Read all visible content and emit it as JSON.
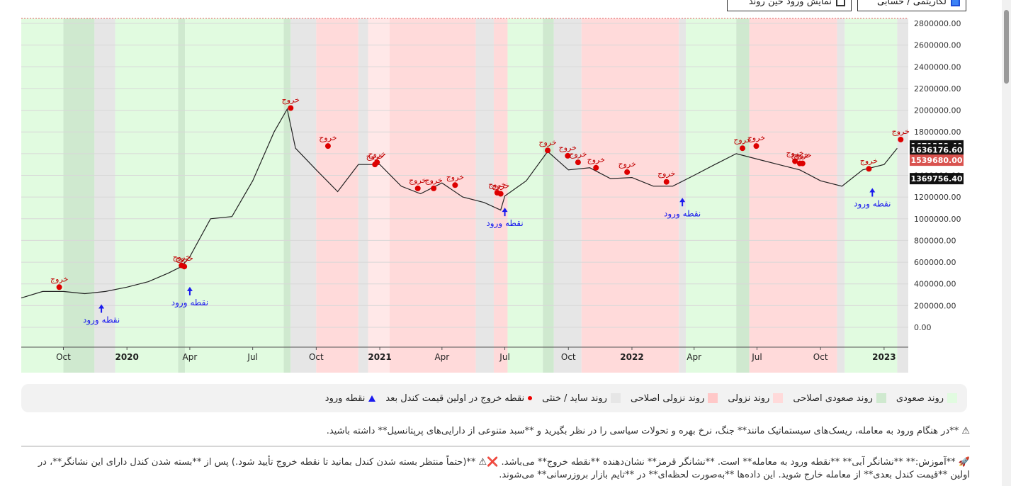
{
  "toolbar": {
    "show_entry_label": "نمایش ورود حین روند",
    "chart_mode_label": "لگاریتمی / حسابی"
  },
  "chart_data": {
    "type": "line",
    "title": "",
    "xlabel": "",
    "ylabel": "",
    "ylim": [
      0,
      2800000
    ],
    "x_ticks": [
      "Oct",
      "2020",
      "Apr",
      "Jul",
      "Oct",
      "2021",
      "Apr",
      "Jul",
      "Oct",
      "2022",
      "Apr",
      "Jul",
      "Oct",
      "2023"
    ],
    "y_ticks": [
      "0.00",
      "200000.00",
      "400000.00",
      "600000.00",
      "800000.00",
      "1000000.00",
      "1200000.00",
      "1400000.00",
      "1600000.00",
      "1800000.00",
      "2000000.00",
      "2200000.00",
      "2400000.00",
      "2600000.00",
      "2800000.00"
    ],
    "price_labels": [
      {
        "value": 1671258.4,
        "text": "1671258.40",
        "color": "#111111"
      },
      {
        "value": 1636176.6,
        "text": "1636176.60",
        "color": "#111111"
      },
      {
        "value": 1539680.0,
        "text": "1539680.00",
        "color": "#d9534f"
      },
      {
        "value": 1369756.4,
        "text": "1369756.40",
        "color": "#111111"
      }
    ],
    "series": [
      {
        "x": [
          "2019-08-01",
          "2019-09-01",
          "2019-10-01",
          "2019-11-01",
          "2019-12-01",
          "2020-01-01",
          "2020-02-01",
          "2020-03-01",
          "2020-03-20",
          "2020-04-01",
          "2020-05-01",
          "2020-06-01",
          "2020-07-01",
          "2020-08-01",
          "2020-08-20",
          "2020-09-01",
          "2020-10-01",
          "2020-11-01",
          "2020-12-01",
          "2021-01-01",
          "2021-02-01",
          "2021-03-01",
          "2021-04-01",
          "2021-05-01",
          "2021-06-01",
          "2021-06-25",
          "2021-07-01",
          "2021-08-01",
          "2021-09-01",
          "2021-10-01",
          "2021-11-01",
          "2021-12-01",
          "2022-01-01",
          "2022-02-01",
          "2022-03-01",
          "2022-04-01",
          "2022-05-01",
          "2022-06-01",
          "2022-07-01",
          "2022-08-01",
          "2022-09-01",
          "2022-10-01",
          "2022-11-01",
          "2022-12-01",
          "2023-01-01",
          "2023-01-20"
        ],
        "values": [
          270000,
          330000,
          330000,
          310000,
          330000,
          370000,
          420000,
          500000,
          560000,
          650000,
          1000000,
          1020000,
          1350000,
          1800000,
          2010000,
          1650000,
          1450000,
          1250000,
          1500000,
          1500000,
          1300000,
          1230000,
          1330000,
          1200000,
          1150000,
          1080000,
          1210000,
          1350000,
          1620000,
          1450000,
          1470000,
          1370000,
          1380000,
          1300000,
          1300000,
          1400000,
          1500000,
          1600000,
          1550000,
          1500000,
          1450000,
          1350000,
          1300000,
          1450000,
          1500000,
          1650000
        ]
      }
    ],
    "exit_points": [
      {
        "x": "2019-09-25",
        "y": 370000
      },
      {
        "x": "2020-03-20",
        "y": 570000
      },
      {
        "x": "2020-03-24",
        "y": 560000
      },
      {
        "x": "2020-08-25",
        "y": 2020000
      },
      {
        "x": "2020-10-18",
        "y": 1670000
      },
      {
        "x": "2020-12-25",
        "y": 1500000
      },
      {
        "x": "2020-12-28",
        "y": 1520000
      },
      {
        "x": "2021-02-25",
        "y": 1280000
      },
      {
        "x": "2021-03-20",
        "y": 1280000
      },
      {
        "x": "2021-04-20",
        "y": 1310000
      },
      {
        "x": "2021-06-20",
        "y": 1240000
      },
      {
        "x": "2021-06-25",
        "y": 1230000
      },
      {
        "x": "2021-09-01",
        "y": 1630000
      },
      {
        "x": "2021-09-30",
        "y": 1580000
      },
      {
        "x": "2021-10-15",
        "y": 1520000
      },
      {
        "x": "2021-11-10",
        "y": 1470000
      },
      {
        "x": "2021-12-25",
        "y": 1430000
      },
      {
        "x": "2022-02-20",
        "y": 1340000
      },
      {
        "x": "2022-06-10",
        "y": 1650000
      },
      {
        "x": "2022-06-30",
        "y": 1670000
      },
      {
        "x": "2022-08-25",
        "y": 1530000
      },
      {
        "x": "2022-09-01",
        "y": 1510000
      },
      {
        "x": "2022-09-05",
        "y": 1510000
      },
      {
        "x": "2022-12-10",
        "y": 1460000
      },
      {
        "x": "2023-01-25",
        "y": 1730000
      }
    ],
    "entry_points": [
      {
        "x": "2019-11-25",
        "y": 330000
      },
      {
        "x": "2020-04-01",
        "y": 490000
      },
      {
        "x": "2021-07-01",
        "y": 1220000
      },
      {
        "x": "2022-03-15",
        "y": 1310000
      },
      {
        "x": "2022-12-15",
        "y": 1400000
      }
    ],
    "exit_label": "خروج",
    "entry_label": "نقطه ورود",
    "regimes": [
      {
        "from": "2019-08-01",
        "to": "2019-10-01",
        "state": "up"
      },
      {
        "from": "2019-10-01",
        "to": "2019-11-15",
        "state": "up-corr"
      },
      {
        "from": "2019-11-15",
        "to": "2019-12-15",
        "state": "side"
      },
      {
        "from": "2019-12-15",
        "to": "2020-03-15",
        "state": "up"
      },
      {
        "from": "2020-03-15",
        "to": "2020-03-25",
        "state": "up-corr"
      },
      {
        "from": "2020-03-25",
        "to": "2020-08-15",
        "state": "up"
      },
      {
        "from": "2020-08-15",
        "to": "2020-08-25",
        "state": "up-corr"
      },
      {
        "from": "2020-08-25",
        "to": "2020-10-01",
        "state": "side"
      },
      {
        "from": "2020-10-01",
        "to": "2020-12-01",
        "state": "down"
      },
      {
        "from": "2020-12-01",
        "to": "2020-12-15",
        "state": "side"
      },
      {
        "from": "2020-12-15",
        "to": "2021-01-15",
        "state": "down-corr"
      },
      {
        "from": "2021-01-15",
        "to": "2021-05-20",
        "state": "down"
      },
      {
        "from": "2021-05-20",
        "to": "2021-06-15",
        "state": "side"
      },
      {
        "from": "2021-06-15",
        "to": "2021-07-05",
        "state": "down"
      },
      {
        "from": "2021-07-05",
        "to": "2021-08-25",
        "state": "up"
      },
      {
        "from": "2021-08-25",
        "to": "2021-09-10",
        "state": "up-corr"
      },
      {
        "from": "2021-09-10",
        "to": "2021-10-20",
        "state": "side"
      },
      {
        "from": "2021-10-20",
        "to": "2022-01-20",
        "state": "down"
      },
      {
        "from": "2022-01-20",
        "to": "2022-03-10",
        "state": "down"
      },
      {
        "from": "2022-03-10",
        "to": "2022-03-20",
        "state": "side"
      },
      {
        "from": "2022-03-20",
        "to": "2022-06-01",
        "state": "up"
      },
      {
        "from": "2022-06-01",
        "to": "2022-06-20",
        "state": "up-corr"
      },
      {
        "from": "2022-06-20",
        "to": "2022-07-20",
        "state": "down"
      },
      {
        "from": "2022-07-20",
        "to": "2022-10-25",
        "state": "down"
      },
      {
        "from": "2022-10-25",
        "to": "2022-11-05",
        "state": "side"
      },
      {
        "from": "2022-11-05",
        "to": "2023-01-20",
        "state": "up"
      },
      {
        "from": "2023-01-20",
        "to": "2023-02-05",
        "state": "side"
      }
    ],
    "grid": true
  },
  "legend": {
    "up": "روند صعودی",
    "up_correction": "روند صعودی اصلاحی",
    "down": "روند نزولی",
    "down_correction": "روند نزولی اصلاحی",
    "sideways": "روند ساید / خنثی",
    "exit": "نقطه خروج در اولین قیمت کندل بعد",
    "entry": "نقطه ورود"
  },
  "notes": {
    "risk": "⚠ **در هنگام ورود به معامله، ریسک‌های سیستماتیک مانند** جنگ، نرخ بهره و تحولات سیاسی را در نظر بگیرید و **سبد متنوعی از دارایی‌های پرپتانسیل** داشته باشید.",
    "tutorial": "🚀 **آموزش:** **نشانگر آبی** **نقطه ورود به معامله** است. **نشانگر قرمز** نشان‌دهنده **نقطه خروج** می‌باشد. ❌⚠ **(حتماً منتظر بسته شدن کندل بمانید تا نقطه خروج تأیید شود.) پس از **بسته شدن کندل دارای این نشانگر**، در اولین **قیمت کندل بعدی** از معامله خارج شوید. این داده‌ها **به‌صورت لحظه‌ای** در **تایم بازار بروزرسانی** می‌شوند."
  },
  "colors": {
    "up": "#e1fbe0",
    "up_correction": "#cfe9cf",
    "down": "#ffdada",
    "down_correction": "#ffe8e8",
    "sideways": "#e6e6e6",
    "line": "#222222",
    "exit": "#dd0000",
    "entry": "#1a1aee"
  }
}
